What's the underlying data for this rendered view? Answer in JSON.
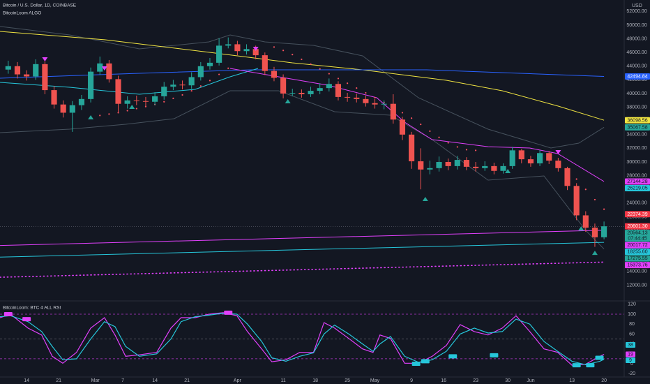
{
  "chart_data": [
    {
      "type": "candlestick",
      "title": "Bitcoin / U.S. Dollar, 1D, COINBASE",
      "subtitle": "BitcoinLoom ALGO",
      "y_axis_label": "USD",
      "x": [
        0,
        2,
        4,
        6,
        8,
        10,
        12,
        14,
        16,
        18,
        20,
        22,
        24,
        26,
        28,
        30,
        32,
        34,
        36,
        38,
        40,
        42,
        44,
        46,
        48,
        50,
        52,
        54,
        56,
        58,
        60,
        62,
        64,
        66,
        68,
        70,
        72,
        74,
        76,
        78,
        80,
        82,
        84,
        86,
        88,
        90,
        92,
        94,
        96,
        98,
        100,
        102,
        104,
        106,
        108,
        110,
        112,
        114,
        116,
        118,
        120,
        122,
        124,
        126,
        128,
        130
      ],
      "open": [
        43500,
        44000,
        42800,
        42500,
        44300,
        40500,
        38400,
        37200,
        38300,
        39200,
        43200,
        44400,
        42100,
        38500,
        39000,
        38900,
        38800,
        39600,
        41000,
        41300,
        41200,
        42400,
        44000,
        44500,
        47000,
        47200,
        46200,
        46500,
        45600,
        43300,
        42300,
        40000,
        40100,
        39900,
        40400,
        40800,
        41400,
        39500,
        39400,
        39200,
        38600,
        38400,
        38500,
        36200,
        34000,
        30100,
        28900,
        29100,
        30000,
        29400,
        30300,
        29300,
        29100,
        29400,
        28700,
        29400,
        31700,
        30400,
        29800,
        31300,
        30200,
        29100,
        26500,
        22200,
        20400,
        19000
      ],
      "high": [
        44800,
        44600,
        43400,
        45000,
        44700,
        41100,
        39000,
        38900,
        39800,
        43800,
        45400,
        44900,
        42600,
        39600,
        39700,
        39500,
        40200,
        41700,
        42000,
        41900,
        43100,
        44600,
        45200,
        48100,
        48200,
        47700,
        47200,
        47000,
        46000,
        43900,
        42800,
        40700,
        40600,
        41000,
        41500,
        42200,
        41800,
        40100,
        40000,
        39700,
        39200,
        39000,
        39900,
        36600,
        34400,
        32000,
        30200,
        30800,
        30500,
        30900,
        30700,
        30000,
        30100,
        29900,
        29800,
        32200,
        31900,
        30900,
        31700,
        31600,
        30600,
        29300,
        26900,
        22800,
        21000,
        21300
      ],
      "low": [
        42900,
        42200,
        41900,
        42000,
        39900,
        37800,
        36500,
        34400,
        37600,
        38700,
        42700,
        41600,
        37300,
        37800,
        38300,
        38100,
        38300,
        39100,
        40500,
        40600,
        40700,
        41900,
        43500,
        44100,
        46600,
        45600,
        45700,
        45000,
        42700,
        41800,
        39300,
        39600,
        39400,
        39500,
        39900,
        40300,
        39000,
        38800,
        38700,
        38100,
        37800,
        37700,
        35600,
        33200,
        29000,
        26000,
        28200,
        28600,
        28800,
        28900,
        28800,
        28600,
        28700,
        28200,
        28300,
        29000,
        29800,
        29300,
        29400,
        29700,
        28600,
        25900,
        21500,
        19800,
        17600,
        18700
      ],
      "close": [
        44000,
        42800,
        42500,
        44300,
        40500,
        38400,
        37200,
        38300,
        39200,
        43200,
        44400,
        42100,
        38500,
        39000,
        38900,
        38800,
        39600,
        41000,
        41300,
        41200,
        42400,
        44000,
        44500,
        47000,
        47200,
        46200,
        46500,
        45600,
        43300,
        42300,
        40000,
        40100,
        39900,
        40400,
        40800,
        41400,
        39500,
        39400,
        39200,
        38600,
        38400,
        38500,
        36200,
        34000,
        30100,
        28900,
        29100,
        30000,
        29400,
        30300,
        29300,
        29100,
        29400,
        28700,
        29400,
        31700,
        30400,
        29800,
        31300,
        30200,
        29100,
        26500,
        22200,
        20400,
        19000,
        20600
      ],
      "up_color": "#26a69a",
      "down_color": "#ef5350",
      "xlim": [
        -1.8,
        134.4
      ],
      "ylim": [
        9800,
        53670
      ],
      "xticks": [
        {
          "value": 4,
          "label": "14"
        },
        {
          "value": 11,
          "label": "21"
        },
        {
          "value": 19,
          "label": "Mar"
        },
        {
          "value": 25,
          "label": "7"
        },
        {
          "value": 32,
          "label": "14"
        },
        {
          "value": 39,
          "label": "21"
        },
        {
          "value": 50,
          "label": "Apr"
        },
        {
          "value": 60,
          "label": "11"
        },
        {
          "value": 67,
          "label": "18"
        },
        {
          "value": 74,
          "label": "25"
        },
        {
          "value": 80,
          "label": "May"
        },
        {
          "value": 88,
          "label": "9"
        },
        {
          "value": 95,
          "label": "16"
        },
        {
          "value": 102,
          "label": "23"
        },
        {
          "value": 109,
          "label": "30"
        },
        {
          "value": 114,
          "label": "Jun"
        },
        {
          "value": 123,
          "label": "13"
        },
        {
          "value": 130,
          "label": "20"
        }
      ],
      "yticks": [
        {
          "value": 12000,
          "label": "12000.00"
        },
        {
          "value": 14000,
          "label": "14000.00"
        },
        {
          "value": 16000,
          "label": "16000.00"
        },
        {
          "value": 18000,
          "label": "18000.00"
        },
        {
          "value": 20000,
          "label": "20000.00"
        },
        {
          "value": 22000,
          "label": "22000.00"
        },
        {
          "value": 24000,
          "label": "24000.00"
        },
        {
          "value": 26000,
          "label": "26000.00"
        },
        {
          "value": 28000,
          "label": "28000.00"
        },
        {
          "value": 30000,
          "label": "30000.00"
        },
        {
          "value": 32000,
          "label": "32000.00"
        },
        {
          "value": 34000,
          "label": "34000.00"
        },
        {
          "value": 36000,
          "label": "36000.00"
        },
        {
          "value": 38000,
          "label": "38000.00"
        },
        {
          "value": 40000,
          "label": "40000.00"
        },
        {
          "value": 42000,
          "label": "42000.00"
        },
        {
          "value": 44000,
          "label": "44000.00"
        },
        {
          "value": 46000,
          "label": "46000.00"
        },
        {
          "value": 48000,
          "label": "48000.00"
        },
        {
          "value": 50000,
          "label": "50000.00"
        },
        {
          "value": 52000,
          "label": "52000.00"
        }
      ],
      "grid": false,
      "lines": [
        {
          "color": "#5d6b76",
          "style": "solid",
          "x": [
            -1.8,
            13.4,
            28.6,
            43.8,
            48.4,
            56,
            66.6,
            77.3,
            89.5,
            104.7,
            118.4,
            124.5,
            130
          ],
          "values": [
            49800,
            48570,
            46530,
            47550,
            48570,
            47550,
            47040,
            45510,
            39390,
            34800,
            32040,
            32760,
            35070
          ]
        },
        {
          "color": "#5d6b76",
          "style": "solid",
          "x": [
            -1.8,
            13.4,
            25.6,
            36.2,
            48.4,
            59,
            71.2,
            83.4,
            92.5,
            104.7,
            116.9,
            126,
            130
          ],
          "values": [
            34290,
            34800,
            35510,
            36330,
            40410,
            40410,
            37350,
            36840,
            33270,
            27350,
            27960,
            20000,
            17280
          ]
        },
        {
          "color": "#f0e442",
          "style": "solid",
          "x": [
            -1.8,
            21,
            43.8,
            62,
            77.3,
            95.6,
            107.8,
            120,
            130
          ],
          "values": [
            49080,
            47860,
            46030,
            44490,
            43470,
            41940,
            40410,
            38160,
            36100
          ]
        },
        {
          "color": "#2962ff",
          "style": "solid",
          "x": [
            -1.8,
            28.6,
            53,
            91.3,
            130
          ],
          "values": [
            42240,
            42960,
            43470,
            43470,
            42495
          ]
        },
        {
          "color": "#26c6da",
          "style": "solid",
          "x": [
            -1.8,
            13.4,
            28.6,
            40.8,
            48.4,
            54.5
          ],
          "values": [
            41630,
            40920,
            39900,
            40610,
            42450,
            43670
          ]
        },
        {
          "color": "#e040fb",
          "style": "solid",
          "x": [
            48.4,
            59,
            69.7,
            80.4,
            86.5,
            92.5,
            104.7,
            113.8,
            119.9,
            130
          ],
          "values": [
            43670,
            42450,
            41220,
            39390,
            35820,
            33270,
            32240,
            32040,
            31220,
            27144
          ]
        },
        {
          "color": "#e040fb",
          "style": "solid",
          "x": [
            -1.8,
            130
          ],
          "values": [
            17800,
            20020
          ]
        },
        {
          "color": "#26c6da",
          "style": "solid",
          "x": [
            -1.8,
            130
          ],
          "values": [
            16100,
            18255
          ]
        },
        {
          "color": "#e040fb",
          "style": "dotted",
          "x": [
            -1.8,
            130
          ],
          "values": [
            13160,
            15374
          ]
        }
      ],
      "sar": {
        "color": "#f7525f",
        "x": [
          20,
          22,
          24,
          26,
          28,
          30,
          32,
          34,
          36,
          38,
          40,
          42,
          44,
          46,
          48,
          58,
          60,
          62,
          64,
          66,
          68,
          70,
          72,
          74,
          76,
          78,
          80,
          82,
          84,
          86,
          88,
          90,
          92,
          94,
          96,
          98,
          100,
          102,
          124,
          126,
          128,
          130
        ],
        "values": [
          36800,
          37000,
          37200,
          37500,
          37800,
          38100,
          38400,
          38800,
          39300,
          39800,
          40400,
          41100,
          41900,
          42800,
          43700,
          46800,
          46300,
          45700,
          45000,
          44300,
          43600,
          42900,
          42200,
          41500,
          40800,
          40100,
          39400,
          38700,
          38000,
          37200,
          36400,
          35500,
          34500,
          33600,
          32800,
          32200,
          31800,
          31700,
          27500,
          26000,
          24500,
          23100
        ]
      },
      "signals": {
        "down": {
          "color": "#e040fb",
          "x": [
            8,
            21,
            54,
            120
          ],
          "values": [
            45000,
            43670,
            46530,
            31430
          ]
        },
        "up": {
          "color": "#26a69a",
          "x": [
            18,
            27,
            61,
            91,
            109,
            125,
            128
          ],
          "values": [
            36530,
            38060,
            38880,
            24590,
            28670,
            20300,
            16730
          ]
        }
      },
      "price_labels": [
        {
          "value": 42494.84,
          "label": "42494.84",
          "color": "#2962ff",
          "text_color": "#ffffff"
        },
        {
          "value": 36098.56,
          "label": "36098.56",
          "color": "#f0e442",
          "text_color": "#131722"
        },
        {
          "value": 35067.58,
          "label": "35067.58",
          "color": "#26a69a",
          "text_color": "#131722"
        },
        {
          "value": 27144.28,
          "label": "27144.28",
          "color": "#e040fb",
          "text_color": "#131722"
        },
        {
          "value": 26219.05,
          "label": "26219.05",
          "color": "#26c6da",
          "text_color": "#131722"
        },
        {
          "value": 22374.39,
          "label": "22374.39",
          "color": "#f23645",
          "text_color": "#ffffff"
        },
        {
          "value": 20601.3,
          "label": "20601.30",
          "color": "#f23645",
          "text_color": "#ffffff"
        },
        {
          "value": 20017.72,
          "label": "20017.72",
          "color": "#e040fb",
          "text_color": "#131722"
        },
        {
          "value": 18255.6,
          "label": "18255.60",
          "color": "#26c6da",
          "text_color": "#131722"
        },
        {
          "value": 17275.55,
          "label": "17275.55",
          "color": "#26a69a",
          "text_color": "#131722"
        },
        {
          "value": 15373.76,
          "label": "15373.76",
          "color": "#e040fb",
          "text_color": "#131722"
        }
      ],
      "current_price": {
        "value": 20564.13,
        "label": "20564.13",
        "countdown": "07:44:45",
        "color": "#26a69a"
      }
    },
    {
      "type": "line",
      "title": "BitcoinLoom: BTC 4 ALL RSI",
      "x": [
        -1.8,
        0.5,
        4.3,
        7.3,
        9.6,
        11.9,
        14.9,
        18,
        21,
        23.3,
        25.6,
        28.6,
        32.4,
        35.5,
        37.7,
        40.8,
        43.8,
        46.9,
        49.9,
        52.2,
        55.3,
        57.5,
        60.6,
        63.6,
        66.6,
        68.9,
        71.2,
        74.3,
        77.3,
        79.6,
        81.1,
        83.4,
        86.5,
        89.5,
        92.5,
        95.6,
        98.6,
        101.7,
        104.7,
        107.8,
        110.8,
        113.8,
        116.9,
        119.9,
        123,
        126,
        129.1,
        130
      ],
      "series": [
        {
          "color": "#e040fb",
          "values": [
            93,
            100,
            72,
            58,
            15,
            1,
            23,
            72,
            93,
            58,
            15,
            18,
            23,
            72,
            93,
            93,
            100,
            103,
            97,
            65,
            30,
            4,
            8,
            23,
            23,
            83,
            72,
            51,
            30,
            23,
            58,
            51,
            1,
            1,
            15,
            37,
            79,
            65,
            58,
            72,
            97,
            65,
            30,
            23,
            -3,
            -1,
            15,
            19
          ]
        },
        {
          "color": "#26c6da",
          "values": [
            95,
            97,
            85,
            65,
            35,
            8,
            10,
            50,
            85,
            75,
            35,
            15,
            20,
            50,
            85,
            95,
            98,
            102,
            100,
            80,
            45,
            12,
            5,
            15,
            22,
            60,
            78,
            60,
            40,
            25,
            40,
            55,
            15,
            3,
            8,
            25,
            60,
            72,
            62,
            65,
            90,
            80,
            45,
            25,
            5,
            -2,
            5,
            9
          ]
        }
      ],
      "xlim": [
        -1.8,
        134.4
      ],
      "ylim": [
        -26.8,
        125.4
      ],
      "yticks": [
        120,
        100,
        80,
        60,
        40,
        20,
        0,
        -20
      ],
      "hlines": [
        {
          "value": 100,
          "color": "#e040fb"
        },
        {
          "value": 50,
          "color": "#787b86"
        },
        {
          "value": 10,
          "color": "#e040fb"
        }
      ],
      "value_labels": [
        {
          "value": 38,
          "color": "#26c6da"
        },
        {
          "value": 19,
          "color": "#e040fb"
        },
        {
          "value": 9,
          "color": "#26c6da"
        }
      ],
      "signals": {
        "sell": {
          "color": "#e040fb",
          "x": [
            0,
            4,
            48
          ],
          "values": [
            100,
            90,
            103
          ]
        },
        "buy": {
          "color": "#26c6da",
          "x": [
            89,
            91,
            97,
            106,
            124,
            127,
            129
          ],
          "values": [
            0,
            5,
            15,
            17,
            -3,
            -3,
            12
          ]
        }
      }
    }
  ]
}
